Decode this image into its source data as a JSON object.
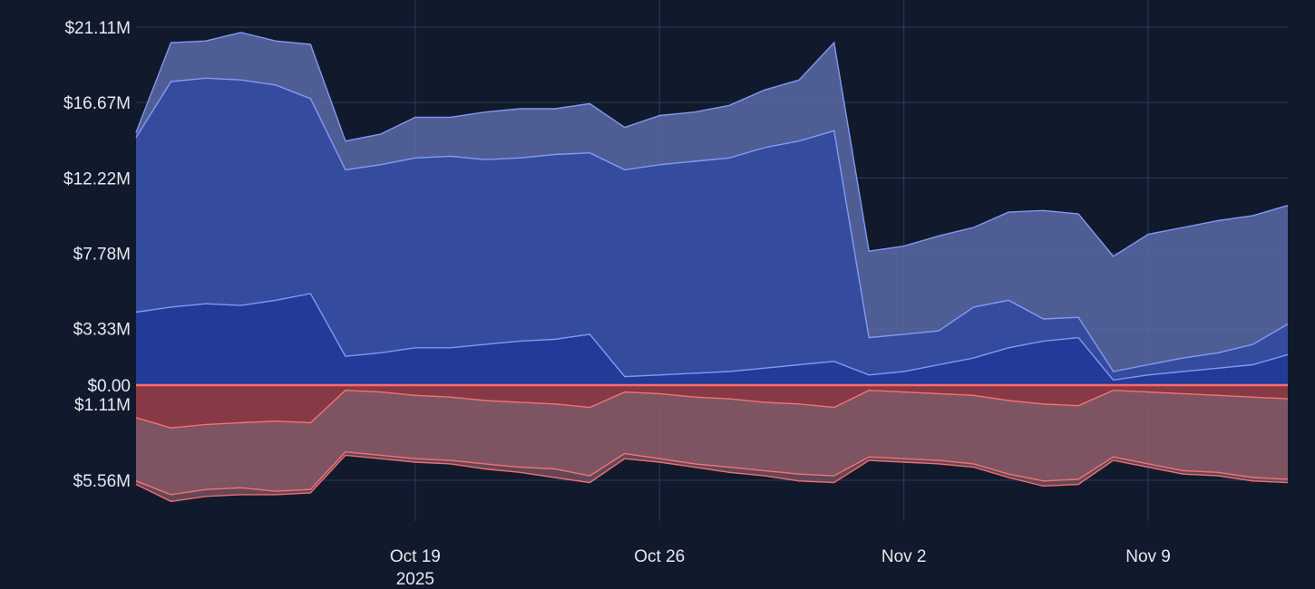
{
  "colors": {
    "background": "#111a2c",
    "grid": "#2b3a5c",
    "positive_fill_light": "#5a6aa8",
    "positive_fill": "#3049a0",
    "positive_fill_dark": "#1f3897",
    "positive_line": "#8aa2ff",
    "negative_fill_light": "#8a5a68",
    "negative_fill": "#8a2e3a",
    "negative_line": "#ff7777",
    "zero_line": "#ff6b6b"
  },
  "chart_data": {
    "type": "area",
    "y_axis": {
      "ticks_positive": [
        {
          "value": 21.11,
          "label": "$21.11M"
        },
        {
          "value": 16.67,
          "label": "$16.67M"
        },
        {
          "value": 12.22,
          "label": "$12.22M"
        },
        {
          "value": 7.78,
          "label": "$7.78M"
        },
        {
          "value": 3.33,
          "label": "$3.33M"
        },
        {
          "value": 0,
          "label": "$0.00"
        }
      ],
      "ticks_negative": [
        {
          "value": -1.11,
          "label": "$1.11M"
        },
        {
          "value": -5.56,
          "label": "$5.56M"
        }
      ],
      "ylim": [
        -7.6,
        21.11
      ]
    },
    "x_axis": {
      "range": [
        "2025-10-11",
        "2025-11-13"
      ],
      "ticks": [
        {
          "date": "2025-10-19",
          "label": "Oct 19",
          "sublabel": "2025"
        },
        {
          "date": "2025-10-26",
          "label": "Oct 26",
          "sublabel": ""
        },
        {
          "date": "2025-11-02",
          "label": "Nov 2",
          "sublabel": ""
        },
        {
          "date": "2025-11-09",
          "label": "Nov 9",
          "sublabel": ""
        }
      ]
    },
    "positive_series": [
      {
        "x": [
          "2025-10-11",
          "2025-10-12",
          "2025-10-13",
          "2025-10-14",
          "2025-10-15",
          "2025-10-16",
          "2025-10-17",
          "2025-10-18",
          "2025-10-19",
          "2025-10-20",
          "2025-10-21",
          "2025-10-22",
          "2025-10-23",
          "2025-10-24",
          "2025-10-25",
          "2025-10-26",
          "2025-10-27",
          "2025-10-28",
          "2025-10-29",
          "2025-10-30",
          "2025-10-31",
          "2025-11-01",
          "2025-11-02",
          "2025-11-03",
          "2025-11-04",
          "2025-11-05",
          "2025-11-06",
          "2025-11-07",
          "2025-11-08",
          "2025-11-09",
          "2025-11-10",
          "2025-11-11",
          "2025-11-12",
          "2025-11-13"
        ],
        "values": [
          14.9,
          20.2,
          20.3,
          20.8,
          20.3,
          20.1,
          14.4,
          14.8,
          15.8,
          15.8,
          16.1,
          16.3,
          16.3,
          16.6,
          15.2,
          15.9,
          16.1,
          16.5,
          17.4,
          18.0,
          20.2,
          7.9,
          8.2,
          8.8,
          9.3,
          10.2,
          10.3,
          10.1,
          7.6,
          8.9,
          9.3,
          9.7,
          10.0,
          10.6
        ]
      },
      {
        "x": [
          "2025-10-11",
          "2025-10-12",
          "2025-10-13",
          "2025-10-14",
          "2025-10-15",
          "2025-10-16",
          "2025-10-17",
          "2025-10-18",
          "2025-10-19",
          "2025-10-20",
          "2025-10-21",
          "2025-10-22",
          "2025-10-23",
          "2025-10-24",
          "2025-10-25",
          "2025-10-26",
          "2025-10-27",
          "2025-10-28",
          "2025-10-29",
          "2025-10-30",
          "2025-10-31",
          "2025-11-01",
          "2025-11-02",
          "2025-11-03",
          "2025-11-04",
          "2025-11-05",
          "2025-11-06",
          "2025-11-07",
          "2025-11-08",
          "2025-11-09",
          "2025-11-10",
          "2025-11-11",
          "2025-11-12",
          "2025-11-13"
        ],
        "values": [
          14.6,
          17.9,
          18.1,
          18.0,
          17.7,
          16.9,
          12.7,
          13.0,
          13.4,
          13.5,
          13.3,
          13.4,
          13.6,
          13.7,
          12.7,
          13.0,
          13.2,
          13.4,
          14.0,
          14.4,
          15.0,
          2.8,
          3.0,
          3.2,
          4.6,
          5.0,
          3.9,
          4.0,
          0.8,
          1.2,
          1.6,
          1.9,
          2.4,
          3.6
        ]
      },
      {
        "x": [
          "2025-10-11",
          "2025-10-12",
          "2025-10-13",
          "2025-10-14",
          "2025-10-15",
          "2025-10-16",
          "2025-10-17",
          "2025-10-18",
          "2025-10-19",
          "2025-10-20",
          "2025-10-21",
          "2025-10-22",
          "2025-10-23",
          "2025-10-24",
          "2025-10-25",
          "2025-10-26",
          "2025-10-27",
          "2025-10-28",
          "2025-10-29",
          "2025-10-30",
          "2025-10-31",
          "2025-11-01",
          "2025-11-02",
          "2025-11-03",
          "2025-11-04",
          "2025-11-05",
          "2025-11-06",
          "2025-11-07",
          "2025-11-08",
          "2025-11-09",
          "2025-11-10",
          "2025-11-11",
          "2025-11-12",
          "2025-11-13"
        ],
        "values": [
          4.3,
          4.6,
          4.8,
          4.7,
          5.0,
          5.4,
          1.7,
          1.9,
          2.2,
          2.2,
          2.4,
          2.6,
          2.7,
          3.0,
          0.5,
          0.6,
          0.7,
          0.8,
          1.0,
          1.2,
          1.4,
          0.6,
          0.8,
          1.2,
          1.6,
          2.2,
          2.6,
          2.8,
          0.3,
          0.6,
          0.8,
          1.0,
          1.2,
          1.8
        ]
      }
    ],
    "negative_series": [
      {
        "x": [
          "2025-10-11",
          "2025-10-12",
          "2025-10-13",
          "2025-10-14",
          "2025-10-15",
          "2025-10-16",
          "2025-10-17",
          "2025-10-18",
          "2025-10-19",
          "2025-10-20",
          "2025-10-21",
          "2025-10-22",
          "2025-10-23",
          "2025-10-24",
          "2025-10-25",
          "2025-10-26",
          "2025-10-27",
          "2025-10-28",
          "2025-10-29",
          "2025-10-30",
          "2025-10-31",
          "2025-11-01",
          "2025-11-02",
          "2025-11-03",
          "2025-11-04",
          "2025-11-05",
          "2025-11-06",
          "2025-11-07",
          "2025-11-08",
          "2025-11-09",
          "2025-11-10",
          "2025-11-11",
          "2025-11-12",
          "2025-11-13"
        ],
        "values": [
          -1.9,
          -2.5,
          -2.3,
          -2.2,
          -2.1,
          -2.2,
          -0.3,
          -0.4,
          -0.6,
          -0.7,
          -0.9,
          -1.0,
          -1.1,
          -1.3,
          -0.4,
          -0.5,
          -0.7,
          -0.8,
          -1.0,
          -1.1,
          -1.3,
          -0.3,
          -0.4,
          -0.5,
          -0.6,
          -0.9,
          -1.1,
          -1.2,
          -0.3,
          -0.4,
          -0.5,
          -0.6,
          -0.7,
          -0.8
        ]
      },
      {
        "x": [
          "2025-10-11",
          "2025-10-12",
          "2025-10-13",
          "2025-10-14",
          "2025-10-15",
          "2025-10-16",
          "2025-10-17",
          "2025-10-18",
          "2025-10-19",
          "2025-10-20",
          "2025-10-21",
          "2025-10-22",
          "2025-10-23",
          "2025-10-24",
          "2025-10-25",
          "2025-10-26",
          "2025-10-27",
          "2025-10-28",
          "2025-10-29",
          "2025-10-30",
          "2025-10-31",
          "2025-11-01",
          "2025-11-02",
          "2025-11-03",
          "2025-11-04",
          "2025-11-05",
          "2025-11-06",
          "2025-11-07",
          "2025-11-08",
          "2025-11-09",
          "2025-11-10",
          "2025-11-11",
          "2025-11-12",
          "2025-11-13"
        ],
        "values": [
          -5.6,
          -6.4,
          -6.1,
          -6.0,
          -6.2,
          -6.1,
          -3.9,
          -4.1,
          -4.3,
          -4.4,
          -4.6,
          -4.8,
          -4.9,
          -5.3,
          -4.0,
          -4.3,
          -4.6,
          -4.8,
          -5.0,
          -5.2,
          -5.3,
          -4.2,
          -4.3,
          -4.4,
          -4.6,
          -5.2,
          -5.6,
          -5.5,
          -4.2,
          -4.6,
          -5.0,
          -5.1,
          -5.4,
          -5.5
        ]
      },
      {
        "x": [
          "2025-10-11",
          "2025-10-12",
          "2025-10-13",
          "2025-10-14",
          "2025-10-15",
          "2025-10-16",
          "2025-10-17",
          "2025-10-18",
          "2025-10-19",
          "2025-10-20",
          "2025-10-21",
          "2025-10-22",
          "2025-10-23",
          "2025-10-24",
          "2025-10-25",
          "2025-10-26",
          "2025-10-27",
          "2025-10-28",
          "2025-10-29",
          "2025-10-30",
          "2025-10-31",
          "2025-11-01",
          "2025-11-02",
          "2025-11-03",
          "2025-11-04",
          "2025-11-05",
          "2025-11-06",
          "2025-11-07",
          "2025-11-08",
          "2025-11-09",
          "2025-11-10",
          "2025-11-11",
          "2025-11-12",
          "2025-11-13"
        ],
        "values": [
          -5.8,
          -6.8,
          -6.5,
          -6.4,
          -6.4,
          -6.3,
          -4.1,
          -4.3,
          -4.5,
          -4.6,
          -4.9,
          -5.1,
          -5.4,
          -5.7,
          -4.3,
          -4.5,
          -4.8,
          -5.1,
          -5.3,
          -5.6,
          -5.7,
          -4.4,
          -4.5,
          -4.6,
          -4.8,
          -5.4,
          -5.9,
          -5.8,
          -4.4,
          -4.8,
          -5.2,
          -5.3,
          -5.6,
          -5.7
        ]
      }
    ],
    "grid": true,
    "legend": "none"
  }
}
